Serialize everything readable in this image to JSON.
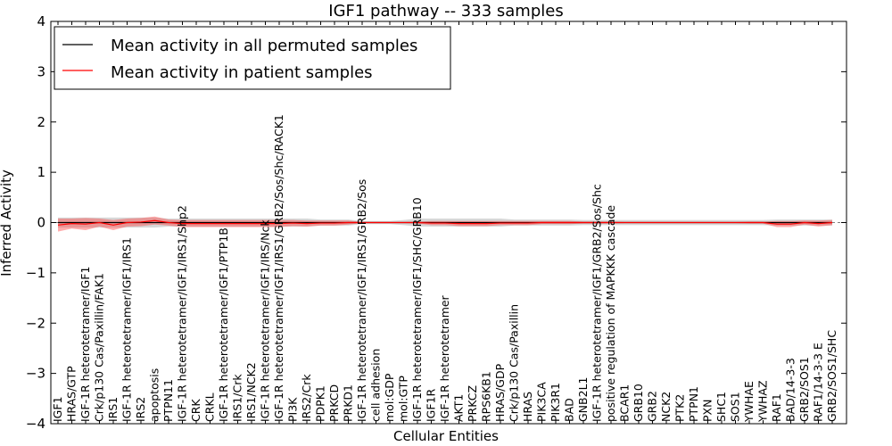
{
  "chart_data": {
    "type": "line",
    "title": "IGF1 pathway -- 333 samples",
    "xlabel": "Cellular Entities",
    "ylabel": "Inferred Activity",
    "ylim": [
      -4,
      4
    ],
    "yticks": [
      4,
      3,
      2,
      1,
      0,
      -1,
      -2,
      -3,
      -4
    ],
    "ytick_labels": [
      "4",
      "3",
      "2",
      "1",
      "0",
      "−1",
      "−2",
      "−3",
      "−4"
    ],
    "legend_position": "top-left",
    "categories": [
      "IGF1",
      "HRAS/GTP",
      "IGF-1R heterotetramer/IGF1",
      "Crk/p130 Cas/Paxillin/FAK1",
      "IRS1",
      "IGF-1R heterotetramer/IGF1/IRS1",
      "IRS2",
      "apoptosis",
      "PTPN11",
      "IGF-1R heterotetramer/IGF1/IRS1/Shp2",
      "CRK",
      "CRKL",
      "IGF-1R heterotetramer/IGF1/PTP1B",
      "IRS1/Crk",
      "IRS1/NCK2",
      "IGF-1R heterotetramer/IGF1/IRS/Nck",
      "IGF-1R heterotetramer/IGF1/IRS1/GRB2/Sos/Shc/RACK1",
      "PI3K",
      "IRS2/Crk",
      "PDPK1",
      "PRKCD",
      "PRKD1",
      "IGF-1R heterotetramer/IGF1/IRS1/GRB2/Sos",
      "cell adhesion",
      "mol:GDP",
      "mol:GTP",
      "IGF-1R heterotetramer/IGF1/SHC/GRB10",
      "IGF1R",
      "IGF-1R heterotetramer",
      "AKT1",
      "PRKCZ",
      "RPS6KB1",
      "HRAS/GDP",
      "Crk/p130 Cas/Paxillin",
      "HRAS",
      "PIK3CA",
      "PIK3R1",
      "BAD",
      "GNB2L1",
      "IGF-1R heterotetramer/IGF1/GRB2/Sos/Shc",
      "positive regulation of MAPKKK cascade",
      "BCAR1",
      "GRB10",
      "GRB2",
      "NCK2",
      "PTK2",
      "PTPN1",
      "PXN",
      "SHC1",
      "SOS1",
      "YWHAE",
      "YWHAZ",
      "RAF1",
      "BAD/14-3-3",
      "GRB2/SOS1",
      "RAF1/14-3-3 E",
      "GRB2/SOS1/SHC"
    ],
    "series": [
      {
        "name": "Mean activity in all permuted samples",
        "color": "#000000",
        "values": [
          0.0,
          0.0,
          0.0,
          0.0,
          0.0,
          0.0,
          0.0,
          0.0,
          0.0,
          0.0,
          0.0,
          0.0,
          0.0,
          0.0,
          0.0,
          0.0,
          0.0,
          0.0,
          0.0,
          0.0,
          0.0,
          0.0,
          0.0,
          0.0,
          0.0,
          0.0,
          0.0,
          0.0,
          0.0,
          0.0,
          0.0,
          0.0,
          0.0,
          0.0,
          0.0,
          0.0,
          0.0,
          0.0,
          0.0,
          0.0,
          0.0,
          0.0,
          0.0,
          0.0,
          0.0,
          0.0,
          0.0,
          0.0,
          0.0,
          0.0,
          0.0,
          0.0,
          0.0,
          0.0,
          0.0,
          0.0,
          0.0
        ],
        "band": [
          0.1,
          0.1,
          0.1,
          0.1,
          0.1,
          0.1,
          0.1,
          0.1,
          0.08,
          0.08,
          0.08,
          0.08,
          0.08,
          0.08,
          0.08,
          0.08,
          0.08,
          0.08,
          0.08,
          0.06,
          0.06,
          0.06,
          0.03,
          0.03,
          0.03,
          0.05,
          0.08,
          0.08,
          0.08,
          0.08,
          0.08,
          0.08,
          0.08,
          0.06,
          0.06,
          0.06,
          0.06,
          0.06,
          0.05,
          0.05,
          0.05,
          0.05,
          0.05,
          0.05,
          0.05,
          0.05,
          0.05,
          0.05,
          0.05,
          0.05,
          0.05,
          0.05,
          0.06,
          0.06,
          0.06,
          0.06,
          0.06
        ]
      },
      {
        "name": "Mean activity in patient samples",
        "color": "#ff0000",
        "values": [
          -0.05,
          -0.02,
          -0.03,
          0.0,
          -0.05,
          0.0,
          0.01,
          0.04,
          0.0,
          -0.02,
          -0.02,
          -0.02,
          -0.02,
          -0.02,
          -0.02,
          -0.02,
          -0.02,
          -0.01,
          -0.02,
          -0.01,
          -0.01,
          0.0,
          0.0,
          0.0,
          0.0,
          0.0,
          0.0,
          -0.01,
          -0.01,
          -0.02,
          -0.02,
          -0.02,
          -0.01,
          -0.01,
          -0.01,
          0.0,
          0.0,
          0.0,
          0.0,
          0.0,
          0.0,
          0.0,
          0.0,
          0.0,
          0.0,
          0.0,
          0.0,
          0.0,
          0.0,
          0.0,
          0.0,
          0.0,
          -0.03,
          -0.03,
          0.0,
          -0.02,
          0.0
        ],
        "band": [
          0.13,
          0.1,
          0.12,
          0.08,
          0.1,
          0.08,
          0.08,
          0.08,
          0.06,
          0.07,
          0.07,
          0.07,
          0.07,
          0.07,
          0.07,
          0.07,
          0.07,
          0.06,
          0.06,
          0.05,
          0.05,
          0.04,
          0.01,
          0.01,
          0.01,
          0.01,
          0.02,
          0.04,
          0.04,
          0.05,
          0.05,
          0.05,
          0.04,
          0.04,
          0.04,
          0.03,
          0.03,
          0.03,
          0.02,
          0.02,
          0.02,
          0.01,
          0.01,
          0.01,
          0.01,
          0.01,
          0.01,
          0.01,
          0.01,
          0.01,
          0.02,
          0.02,
          0.06,
          0.06,
          0.04,
          0.06,
          0.05
        ]
      }
    ]
  }
}
